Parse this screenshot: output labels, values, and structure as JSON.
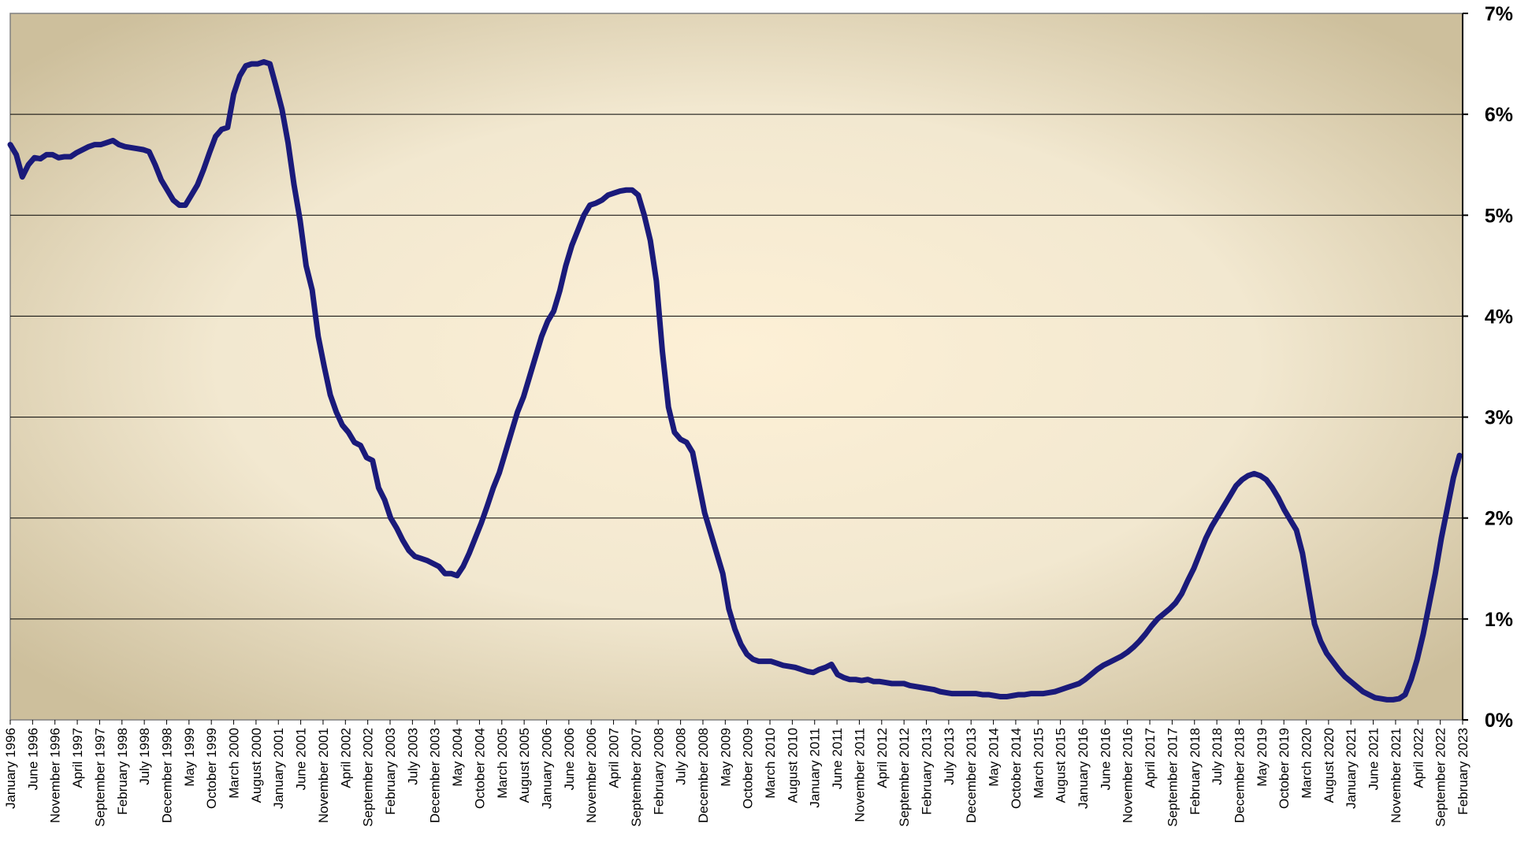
{
  "chart_data": {
    "type": "line",
    "title": "",
    "xlabel": "",
    "ylabel": "",
    "x_range": [
      "January 1996",
      "February 2023"
    ],
    "ylim": [
      0,
      7
    ],
    "y_ticks": [
      "0%",
      "1%",
      "2%",
      "3%",
      "4%",
      "5%",
      "6%",
      "7%"
    ],
    "x_ticks": [
      "January 1996",
      "June 1996",
      "November 1996",
      "April 1997",
      "September 1997",
      "February 1998",
      "July 1998",
      "December 1998",
      "May 1999",
      "October 1999",
      "March 2000",
      "August 2000",
      "January 2001",
      "June 2001",
      "November 2001",
      "April 2002",
      "September 2002",
      "February 2003",
      "July 2003",
      "December 2003",
      "May 2004",
      "October 2004",
      "March 2005",
      "August 2005",
      "January 2006",
      "June 2006",
      "November 2006",
      "April 2007",
      "September 2007",
      "February 2008",
      "July 2008",
      "December 2008",
      "May 2009",
      "October 2009",
      "March 2010",
      "August 2010",
      "January 2011",
      "June 2011",
      "November 2011",
      "April 2012",
      "September 2012",
      "February 2013",
      "July 2013",
      "December 2013",
      "May 2014",
      "October 2014",
      "March 2015",
      "August 2015",
      "January 2016",
      "June 2016",
      "November 2016",
      "April 2017",
      "September 2017",
      "February 2018",
      "July 2018",
      "December 2018",
      "May 2019",
      "October 2019",
      "March 2020",
      "August 2020",
      "January 2021",
      "June 2021",
      "November 2021",
      "April 2022",
      "September 2022",
      "February 2023"
    ],
    "grid": true,
    "y_axis_side": "right",
    "line_color": "#1a1a7a",
    "series": [
      {
        "values": [
          5.7,
          5.6,
          5.38,
          5.5,
          5.57,
          5.56,
          5.6,
          5.6,
          5.57,
          5.58,
          5.58,
          5.62,
          5.65,
          5.68,
          5.7,
          5.7,
          5.72,
          5.74,
          5.7,
          5.68,
          5.67,
          5.66,
          5.65,
          5.63,
          5.5,
          5.35,
          5.25,
          5.15,
          5.1,
          5.1,
          5.2,
          5.3,
          5.45,
          5.62,
          5.78,
          5.85,
          5.87,
          6.2,
          6.38,
          6.48,
          6.5,
          6.5,
          6.52,
          6.5,
          6.28,
          6.05,
          5.72,
          5.3,
          4.95,
          4.5,
          4.26,
          3.8,
          3.5,
          3.22,
          3.05,
          2.92,
          2.85,
          2.75,
          2.72,
          2.6,
          2.57,
          2.3,
          2.18,
          2.0,
          1.9,
          1.78,
          1.68,
          1.62,
          1.6,
          1.58,
          1.55,
          1.52,
          1.45,
          1.45,
          1.43,
          1.52,
          1.65,
          1.8,
          1.95,
          2.12,
          2.3,
          2.45,
          2.65,
          2.85,
          3.05,
          3.2,
          3.4,
          3.6,
          3.8,
          3.95,
          4.05,
          4.25,
          4.5,
          4.7,
          4.85,
          5.0,
          5.1,
          5.12,
          5.15,
          5.2,
          5.22,
          5.24,
          5.25,
          5.25,
          5.2,
          5.0,
          4.75,
          4.35,
          3.65,
          3.1,
          2.85,
          2.78,
          2.75,
          2.65,
          2.35,
          2.05,
          1.85,
          1.65,
          1.45,
          1.1,
          0.9,
          0.75,
          0.65,
          0.6,
          0.58,
          0.58,
          0.58,
          0.56,
          0.54,
          0.53,
          0.52,
          0.5,
          0.48,
          0.47,
          0.5,
          0.52,
          0.55,
          0.45,
          0.42,
          0.4,
          0.4,
          0.39,
          0.4,
          0.38,
          0.38,
          0.37,
          0.36,
          0.36,
          0.36,
          0.34,
          0.33,
          0.32,
          0.31,
          0.3,
          0.28,
          0.27,
          0.26,
          0.26,
          0.26,
          0.26,
          0.26,
          0.25,
          0.25,
          0.24,
          0.23,
          0.23,
          0.24,
          0.25,
          0.25,
          0.26,
          0.26,
          0.26,
          0.27,
          0.28,
          0.3,
          0.32,
          0.34,
          0.36,
          0.4,
          0.45,
          0.5,
          0.54,
          0.57,
          0.6,
          0.63,
          0.67,
          0.72,
          0.78,
          0.85,
          0.93,
          1.0,
          1.05,
          1.1,
          1.16,
          1.25,
          1.38,
          1.5,
          1.65,
          1.8,
          1.92,
          2.02,
          2.12,
          2.22,
          2.32,
          2.38,
          2.42,
          2.44,
          2.42,
          2.38,
          2.3,
          2.2,
          2.08,
          1.98,
          1.88,
          1.65,
          1.3,
          0.95,
          0.78,
          0.66,
          0.58,
          0.5,
          0.43,
          0.38,
          0.33,
          0.28,
          0.25,
          0.22,
          0.21,
          0.2,
          0.2,
          0.21,
          0.25,
          0.4,
          0.6,
          0.85,
          1.15,
          1.45,
          1.8,
          2.1,
          2.4,
          2.62
        ]
      }
    ]
  }
}
